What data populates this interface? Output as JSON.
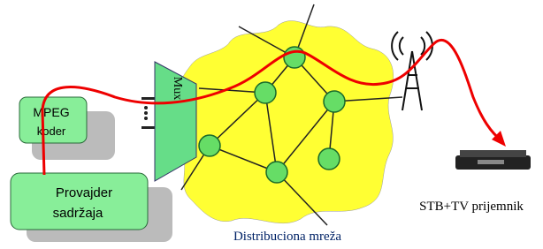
{
  "encoder": {
    "line1": "MPEG",
    "line2": "koder"
  },
  "provider": {
    "line1": "Provajder",
    "line2": "sadržaja"
  },
  "mux": {
    "label": "Mux"
  },
  "network": {
    "label": "Distribuciona mreža"
  },
  "receiver": {
    "label": "STB+TV prijemnik"
  }
}
